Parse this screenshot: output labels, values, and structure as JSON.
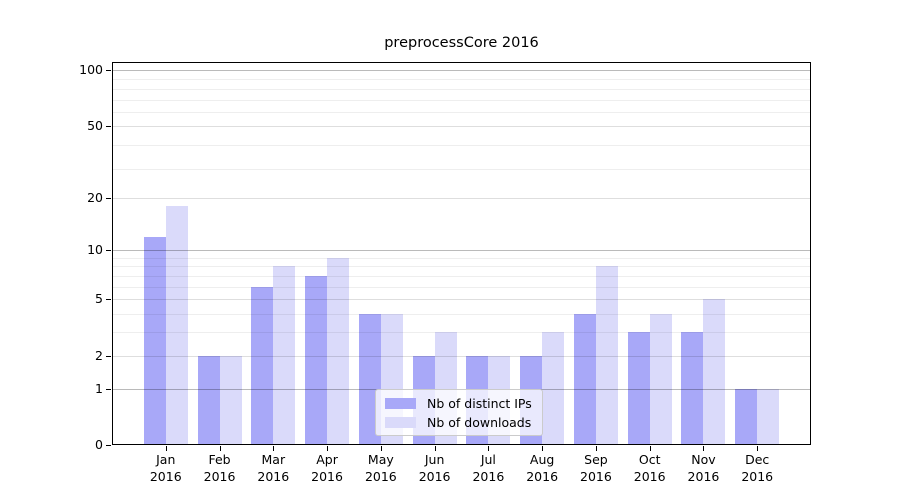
{
  "chart_data": {
    "type": "bar",
    "title": "preprocessCore 2016",
    "year_label": "2016",
    "categories": [
      "Jan",
      "Feb",
      "Mar",
      "Apr",
      "May",
      "Jun",
      "Jul",
      "Aug",
      "Sep",
      "Oct",
      "Nov",
      "Dec"
    ],
    "series": [
      {
        "name": "Nb of distinct IPs",
        "color": "#a8a8f8",
        "values": [
          12,
          2,
          6,
          7,
          4,
          2,
          2,
          2,
          4,
          3,
          3,
          1
        ]
      },
      {
        "name": "Nb of downloads",
        "color": "#dadafa",
        "values": [
          18,
          2,
          8,
          9,
          4,
          3,
          2,
          3,
          8,
          4,
          5,
          1
        ]
      }
    ],
    "y_axis": {
      "scale": "log10(1+x)",
      "tick_values": [
        0,
        1,
        2,
        5,
        10,
        20,
        50,
        100
      ],
      "top_value": 100,
      "gridlines": {
        "strong": [
          1,
          10,
          100
        ],
        "medium": [
          2,
          5,
          20,
          50
        ],
        "faint": [
          3,
          4,
          6,
          7,
          8,
          9,
          29,
          39,
          59,
          69,
          79,
          89
        ]
      }
    },
    "legend": {
      "position": "lower-center"
    }
  }
}
